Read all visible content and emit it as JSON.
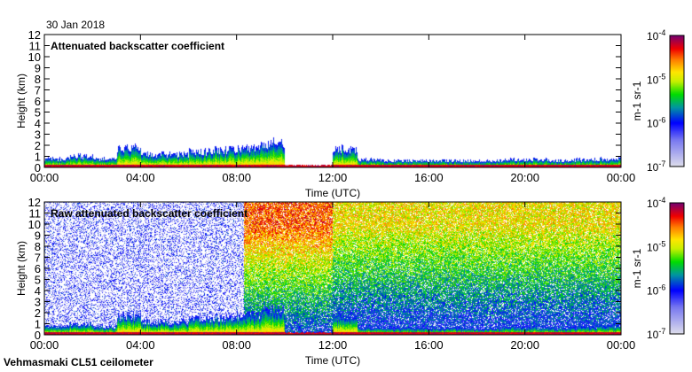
{
  "date_label": "30 Jan 2018",
  "footer": "Vehmasmaki CL51 ceilometer",
  "chart_data": [
    {
      "type": "heatmap",
      "title": "Attenuated backscatter coefficient",
      "xlabel": "Time (UTC)",
      "ylabel": "Height (km)",
      "xticks": [
        "00:00",
        "04:00",
        "08:00",
        "12:00",
        "16:00",
        "20:00",
        "00:00"
      ],
      "yticks": [
        "0",
        "1",
        "2",
        "3",
        "4",
        "5",
        "6",
        "7",
        "8",
        "9",
        "10",
        "11",
        "12"
      ],
      "ylim": [
        0,
        12
      ],
      "xlim_hours": [
        0,
        24
      ],
      "signal_top_km_by_hour": [
        1.0,
        1.3,
        1.0,
        2.2,
        1.5,
        1.5,
        1.8,
        2.0,
        2.2,
        2.8,
        0.3,
        0.3,
        2.1,
        0.9,
        0.8,
        0.8,
        0.8,
        0.8,
        0.8,
        0.9,
        0.9,
        0.8,
        0.9,
        1.0
      ],
      "colorbar": {
        "label": "m-1 sr-1",
        "ticks": [
          "10-7",
          "10-6",
          "10-5",
          "10-4"
        ],
        "range": [
          1e-07,
          0.0001
        ],
        "scale": "log"
      }
    },
    {
      "type": "heatmap",
      "title": "Raw attenuated backscatter coefficient",
      "xlabel": "Time (UTC)",
      "ylabel": "Height (km)",
      "xticks": [
        "00:00",
        "04:00",
        "08:00",
        "12:00",
        "16:00",
        "20:00",
        "00:00"
      ],
      "yticks": [
        "0",
        "1",
        "2",
        "3",
        "4",
        "5",
        "6",
        "7",
        "8",
        "9",
        "10",
        "11",
        "12"
      ],
      "ylim": [
        0,
        12
      ],
      "xlim_hours": [
        0,
        24
      ],
      "colorbar": {
        "label": "m-1 sr-1",
        "ticks": [
          "10-7",
          "10-6",
          "10-5",
          "10-4"
        ],
        "range": [
          1e-07,
          0.0001
        ],
        "scale": "log"
      }
    }
  ]
}
